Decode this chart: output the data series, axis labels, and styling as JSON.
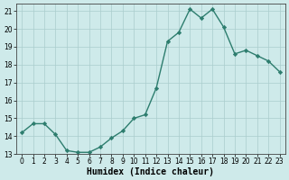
{
  "x": [
    0,
    1,
    2,
    3,
    4,
    5,
    6,
    7,
    8,
    9,
    10,
    11,
    12,
    13,
    14,
    15,
    16,
    17,
    18,
    19,
    20,
    21,
    22,
    23
  ],
  "y": [
    14.2,
    14.7,
    14.7,
    14.1,
    13.2,
    13.1,
    13.1,
    13.4,
    13.9,
    14.3,
    15.0,
    15.2,
    16.7,
    19.3,
    19.8,
    21.1,
    20.6,
    21.1,
    20.1,
    18.6,
    18.8,
    18.5,
    18.2,
    17.6
  ],
  "line_color": "#2d7d6e",
  "marker": "D",
  "markersize": 2.2,
  "bg_color": "#ceeaea",
  "grid_color": "#aacccc",
  "xlabel": "Humidex (Indice chaleur)",
  "ylim": [
    13,
    21.4
  ],
  "xlim": [
    -0.5,
    23.5
  ],
  "yticks": [
    13,
    14,
    15,
    16,
    17,
    18,
    19,
    20,
    21
  ],
  "xticks": [
    0,
    1,
    2,
    3,
    4,
    5,
    6,
    7,
    8,
    9,
    10,
    11,
    12,
    13,
    14,
    15,
    16,
    17,
    18,
    19,
    20,
    21,
    22,
    23
  ],
  "tick_fontsize": 5.5,
  "xlabel_fontsize": 7,
  "linewidth": 1.0
}
